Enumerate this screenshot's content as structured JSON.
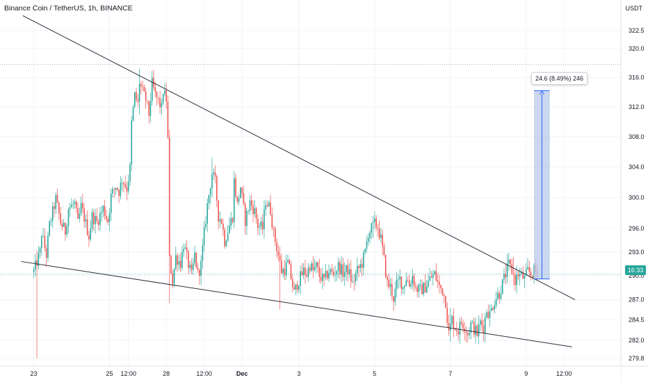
{
  "header": {
    "title": "Binance Coin / TetherUS, 1h, BINANCE",
    "unit": "USDT"
  },
  "price_tag": "16:33",
  "measure_label": "24.6 (8.49%) 246",
  "colors": {
    "up": "#26a69a",
    "down": "#ef5350",
    "line": "#2a2e39",
    "grid": "#f0f3fa",
    "measure_fill": "#b8c9ea",
    "measure_line": "#2962ff",
    "text": "#131722"
  },
  "chart_data": {
    "type": "candlestick",
    "title": "Binance Coin / TetherUS, 1h, BINANCE",
    "ylabel": "USDT",
    "y_scale": "log",
    "ylim": [
      279.0,
      326.5
    ],
    "y_ticks": [
      279.8,
      282.0,
      284.5,
      287.0,
      290.0,
      293.0,
      296.0,
      300.0,
      304.0,
      308.0,
      312.0,
      316.0,
      320.0,
      322.5
    ],
    "y_tick_labels": [
      "279.8",
      "282.0",
      "284.5",
      "287.0",
      "290.0",
      "293.0",
      "296.0",
      "300.0",
      "304.0",
      "308.0",
      "312.0",
      "316.0",
      "320.0",
      "322.5"
    ],
    "x_ticks": [
      {
        "label": "23",
        "bar": 0
      },
      {
        "label": "25",
        "bar": 48
      },
      {
        "label": "12:00",
        "bar": 60
      },
      {
        "label": "28",
        "bar": 84
      },
      {
        "label": "12:00",
        "bar": 108
      },
      {
        "label": "Dec",
        "bar": 132
      },
      {
        "label": "3",
        "bar": 168
      },
      {
        "label": "5",
        "bar": 216
      },
      {
        "label": "7",
        "bar": 264
      },
      {
        "label": "9",
        "bar": 312
      },
      {
        "label": "12:00",
        "bar": 336
      }
    ],
    "bars_count": 320,
    "last_price": 290.2,
    "anchors": [
      [
        0,
        290.5
      ],
      [
        4,
        293.0
      ],
      [
        5,
        295.4
      ],
      [
        8,
        292.6
      ],
      [
        10,
        296.4
      ],
      [
        14,
        299.8
      ],
      [
        17,
        296.8
      ],
      [
        20,
        295.6
      ],
      [
        22,
        298.6
      ],
      [
        26,
        299.2
      ],
      [
        28,
        296.6
      ],
      [
        30,
        298.8
      ],
      [
        32,
        297.4
      ],
      [
        35,
        295.0
      ],
      [
        37,
        297.6
      ],
      [
        40,
        296.8
      ],
      [
        44,
        298.6
      ],
      [
        47,
        297.0
      ],
      [
        49,
        300.2
      ],
      [
        52,
        301.5
      ],
      [
        54,
        300.8
      ],
      [
        56,
        302.4
      ],
      [
        59,
        301.2
      ],
      [
        61,
        303.8
      ],
      [
        62,
        309.8
      ],
      [
        64,
        313.6
      ],
      [
        66,
        312.4
      ],
      [
        67,
        315.4
      ],
      [
        69,
        314.0
      ],
      [
        71,
        313.0
      ],
      [
        73,
        311.0
      ],
      [
        75,
        315.2
      ],
      [
        77,
        313.6
      ],
      [
        79,
        312.8
      ],
      [
        81,
        311.8
      ],
      [
        82,
        314.2
      ],
      [
        84,
        313.0
      ],
      [
        85,
        307.6
      ],
      [
        86,
        292.0
      ],
      [
        88,
        289.4
      ],
      [
        90,
        292.4
      ],
      [
        93,
        291.6
      ],
      [
        95,
        294.0
      ],
      [
        98,
        291.4
      ],
      [
        100,
        290.0
      ],
      [
        102,
        292.6
      ],
      [
        104,
        290.2
      ],
      [
        106,
        291.4
      ],
      [
        108,
        295.4
      ],
      [
        110,
        299.0
      ],
      [
        113,
        303.2
      ],
      [
        115,
        302.0
      ],
      [
        117,
        297.6
      ],
      [
        119,
        297.0
      ],
      [
        121,
        294.4
      ],
      [
        124,
        296.4
      ],
      [
        126,
        297.6
      ],
      [
        127,
        302.2
      ],
      [
        129,
        299.0
      ],
      [
        131,
        301.4
      ],
      [
        134,
        297.0
      ],
      [
        137,
        299.4
      ],
      [
        140,
        298.2
      ],
      [
        142,
        296.4
      ],
      [
        145,
        296.0
      ],
      [
        147,
        299.6
      ],
      [
        150,
        298.4
      ],
      [
        152,
        295.4
      ],
      [
        155,
        292.6
      ],
      [
        157,
        290.6
      ],
      [
        159,
        290.8
      ],
      [
        161,
        291.6
      ],
      [
        163,
        289.8
      ],
      [
        165,
        287.8
      ],
      [
        167,
        289.0
      ],
      [
        169,
        289.8
      ],
      [
        171,
        290.6
      ],
      [
        173,
        290.2
      ],
      [
        175,
        291.4
      ],
      [
        177,
        290.6
      ],
      [
        179,
        291.2
      ],
      [
        181,
        290.0
      ],
      [
        184,
        289.4
      ],
      [
        187,
        290.6
      ],
      [
        190,
        290.2
      ],
      [
        193,
        291.2
      ],
      [
        196,
        290.4
      ],
      [
        199,
        290.8
      ],
      [
        202,
        289.0
      ],
      [
        205,
        290.6
      ],
      [
        208,
        291.6
      ],
      [
        210,
        293.0
      ],
      [
        212,
        295.4
      ],
      [
        214,
        296.0
      ],
      [
        216,
        296.6
      ],
      [
        218,
        296.2
      ],
      [
        220,
        294.6
      ],
      [
        222,
        292.0
      ],
      [
        224,
        289.0
      ],
      [
        226,
        288.6
      ],
      [
        228,
        287.2
      ],
      [
        230,
        288.8
      ],
      [
        232,
        289.6
      ],
      [
        234,
        288.6
      ],
      [
        236,
        289.8
      ],
      [
        238,
        288.8
      ],
      [
        240,
        290.0
      ],
      [
        242,
        288.4
      ],
      [
        245,
        288.2
      ],
      [
        248,
        288.6
      ],
      [
        251,
        289.6
      ],
      [
        254,
        290.2
      ],
      [
        257,
        288.6
      ],
      [
        259,
        288.2
      ],
      [
        261,
        286.8
      ],
      [
        263,
        282.8
      ],
      [
        265,
        284.6
      ],
      [
        267,
        283.6
      ],
      [
        269,
        283.2
      ],
      [
        271,
        284.2
      ],
      [
        273,
        283.8
      ],
      [
        275,
        282.8
      ],
      [
        277,
        284.0
      ],
      [
        279,
        283.4
      ],
      [
        281,
        282.8
      ],
      [
        283,
        284.2
      ],
      [
        285,
        283.6
      ],
      [
        287,
        285.8
      ],
      [
        289,
        285.2
      ],
      [
        291,
        286.4
      ],
      [
        293,
        287.4
      ],
      [
        295,
        287.8
      ],
      [
        297,
        289.0
      ],
      [
        299,
        290.2
      ],
      [
        301,
        291.4
      ],
      [
        303,
        290.6
      ],
      [
        305,
        289.4
      ],
      [
        307,
        290.2
      ],
      [
        309,
        290.0
      ],
      [
        311,
        289.6
      ],
      [
        313,
        290.6
      ],
      [
        315,
        290.2
      ],
      [
        317,
        290.6
      ],
      [
        319,
        290.2
      ]
    ],
    "spikes": [
      {
        "bar": 2,
        "low": 279.8,
        "high": 293.2
      },
      {
        "bar": 67,
        "low": 311.0,
        "high": 317.2
      },
      {
        "bar": 86,
        "low": 286.6,
        "high": 292.6
      },
      {
        "bar": 113,
        "low": 300.0,
        "high": 305.2
      },
      {
        "bar": 156,
        "low": 285.8,
        "high": 290.4
      },
      {
        "bar": 215,
        "low": 294.8,
        "high": 297.6
      },
      {
        "bar": 264,
        "low": 281.8,
        "high": 286.0
      },
      {
        "bar": 304,
        "low": 288.8,
        "high": 292.4
      }
    ],
    "trendlines": [
      {
        "name": "upper",
        "from": {
          "bar": -7,
          "price": 324.6
        },
        "to": {
          "bar": 343,
          "price": 287.0
        }
      },
      {
        "name": "lower",
        "from": {
          "bar": -8,
          "price": 291.8
        },
        "to": {
          "bar": 341,
          "price": 281.2
        }
      }
    ],
    "measure": {
      "from_bar": 317,
      "to_bar": 327,
      "low": 289.6,
      "high": 314.2,
      "change": 24.6,
      "percent": 8.49,
      "bars": 246
    },
    "reference_line": {
      "price": 317.8,
      "style": "dotted"
    },
    "current_price_line": {
      "price": 290.2,
      "style": "dotted"
    }
  }
}
